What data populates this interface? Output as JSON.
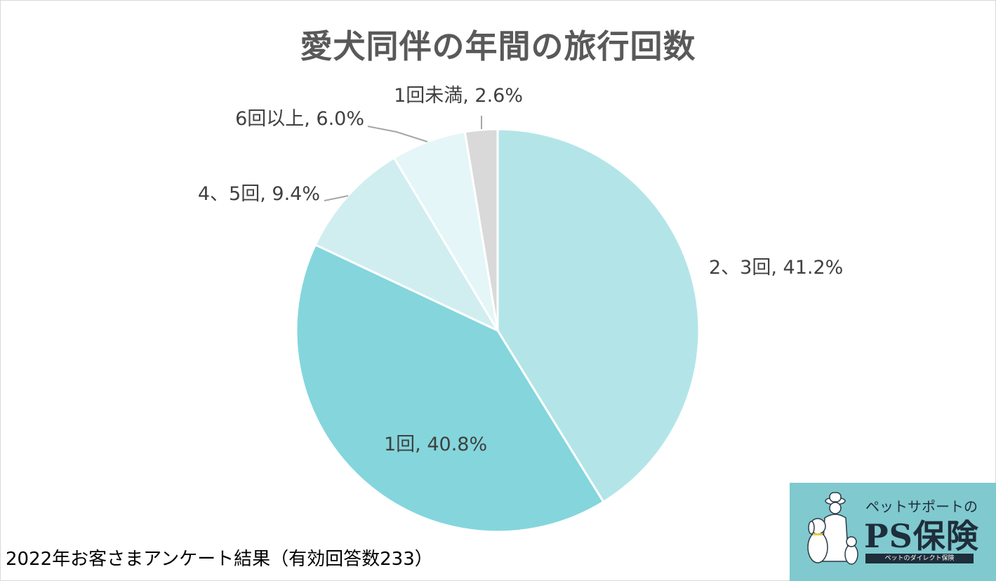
{
  "chart_data": {
    "type": "pie",
    "title": "愛犬同伴の年間の旅行回数",
    "start_angle_deg": 0,
    "direction": "clockwise",
    "slices": [
      {
        "label": "2、3回",
        "value": 41.2,
        "display": "2、3回, 41.2%",
        "color": "#b3e5e8"
      },
      {
        "label": "1回",
        "value": 40.8,
        "display": "1回, 40.8%",
        "color": "#84d6dc"
      },
      {
        "label": "4、5回",
        "value": 9.4,
        "display": "4、5回, 9.4%",
        "color": "#d0eef0"
      },
      {
        "label": "6回以上",
        "value": 6.0,
        "display": "6回以上, 6.0%",
        "color": "#e4f6f7"
      },
      {
        "label": "1回未満",
        "value": 2.6,
        "display": "1回未満, 2.6%",
        "color": "#d9d9d9"
      }
    ],
    "legend": "none",
    "data_labels": "category and percentage"
  },
  "footnote": "2022年お客さまアンケート結果（有効回答数233）",
  "logo": {
    "tagline": "ペットサポートの",
    "name": "PS保険",
    "subtitle": "ペットのダイレクト保険",
    "background": "#7fc9cf"
  }
}
